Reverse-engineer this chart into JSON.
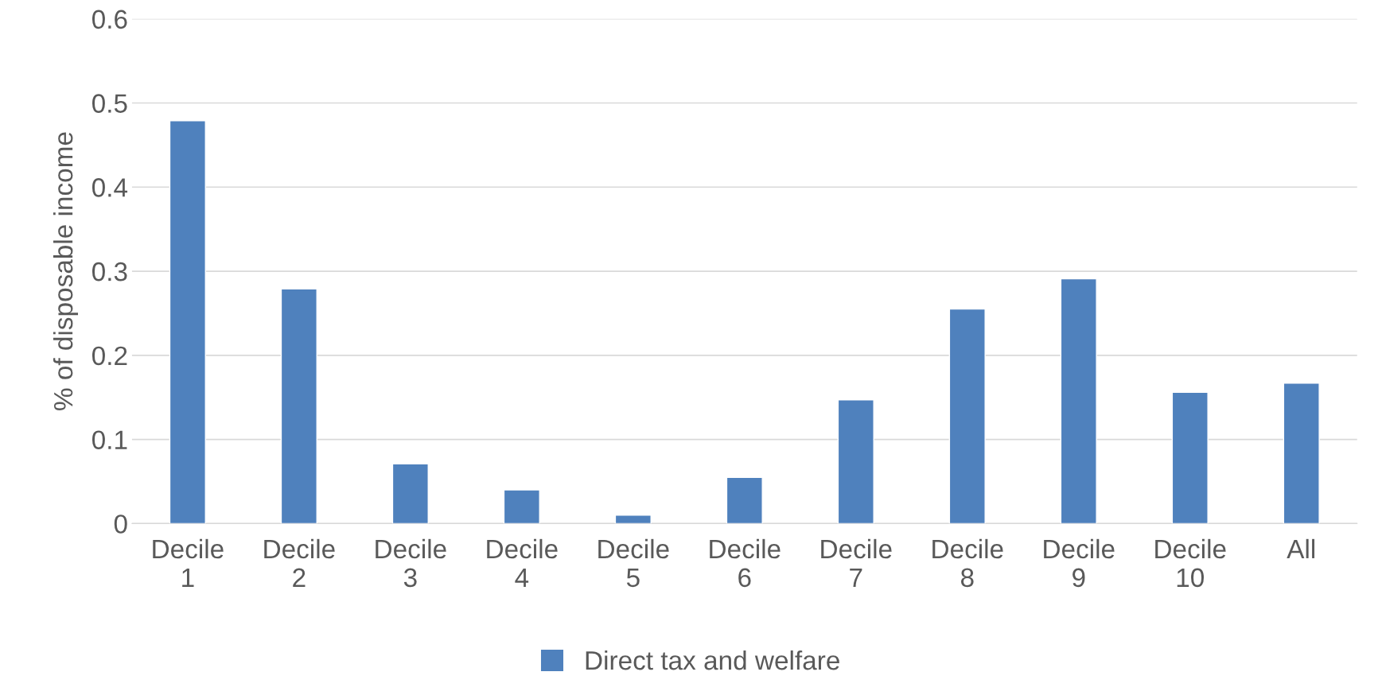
{
  "chart_data": {
    "type": "bar",
    "ylabel": "% of disposable income",
    "categories": [
      "Decile 1",
      "Decile 2",
      "Decile 3",
      "Decile 4",
      "Decile 5",
      "Decile 6",
      "Decile 7",
      "Decile 8",
      "Decile 9",
      "Decile 10",
      "All"
    ],
    "series": [
      {
        "name": "Direct tax and welfare",
        "color": "#4f81bd",
        "values": [
          0.479,
          0.279,
          0.071,
          0.04,
          0.01,
          0.055,
          0.147,
          0.255,
          0.291,
          0.156,
          0.167
        ]
      }
    ],
    "ylim": [
      0,
      0.6
    ],
    "yticks": [
      0,
      0.1,
      0.2,
      0.3,
      0.4,
      0.5,
      0.6
    ],
    "grid": "y",
    "legend": "bottom"
  }
}
